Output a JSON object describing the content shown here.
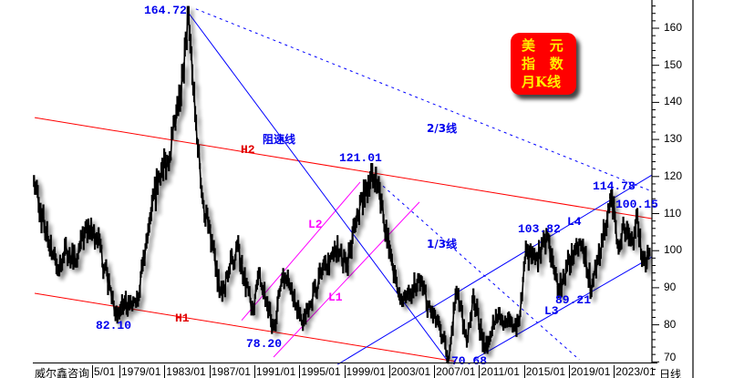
{
  "chart_data": {
    "type": "candlestick-monthly",
    "title_badge": [
      "美",
      "元",
      "指",
      "数",
      "月K线"
    ],
    "ylim": [
      68,
      166
    ],
    "yticks": [
      70,
      80,
      90,
      100,
      110,
      120,
      130,
      140,
      150,
      160
    ],
    "xticks": [
      "5/01",
      "1979/01",
      "1983/01",
      "1987/01",
      "1991/01",
      "1995/01",
      "1999/01",
      "2003/01",
      "2007/01",
      "2011/01",
      "2015/01",
      "2019/01",
      "2023/01"
    ],
    "xlim_years": [
      1971.4,
      2026.4
    ],
    "grid": false,
    "price_anchors": [
      [
        1971.4,
        120
      ],
      [
        1972.0,
        110
      ],
      [
        1973.5,
        95
      ],
      [
        1974.3,
        100
      ],
      [
        1975.2,
        97
      ],
      [
        1976.0,
        106
      ],
      [
        1977.0,
        104
      ],
      [
        1978.8,
        82.1
      ],
      [
        1979.5,
        86
      ],
      [
        1980.5,
        85
      ],
      [
        1981.6,
        106
      ],
      [
        1982.5,
        120
      ],
      [
        1983.5,
        126
      ],
      [
        1984.5,
        142
      ],
      [
        1985.15,
        164.72
      ],
      [
        1985.8,
        135
      ],
      [
        1986.5,
        112
      ],
      [
        1987.5,
        98
      ],
      [
        1988.0,
        88
      ],
      [
        1989.5,
        101
      ],
      [
        1990.8,
        84
      ],
      [
        1991.5,
        94
      ],
      [
        1992.7,
        78.2
      ],
      [
        1993.5,
        94
      ],
      [
        1994.3,
        90
      ],
      [
        1995.3,
        80
      ],
      [
        1996.0,
        86
      ],
      [
        1997.3,
        97
      ],
      [
        1998.6,
        100
      ],
      [
        1999.2,
        96
      ],
      [
        2000.2,
        110
      ],
      [
        2001.5,
        121.01
      ],
      [
        2002.3,
        113
      ],
      [
        2003.0,
        100
      ],
      [
        2004.0,
        86
      ],
      [
        2005.8,
        92
      ],
      [
        2006.5,
        85
      ],
      [
        2007.5,
        79
      ],
      [
        2008.3,
        70.68
      ],
      [
        2008.9,
        88
      ],
      [
        2009.3,
        86
      ],
      [
        2009.9,
        75
      ],
      [
        2010.5,
        88
      ],
      [
        2011.5,
        73
      ],
      [
        2012.5,
        83
      ],
      [
        2013.5,
        80
      ],
      [
        2014.5,
        80
      ],
      [
        2015.2,
        100
      ],
      [
        2016.0,
        97
      ],
      [
        2017.0,
        103.82
      ],
      [
        2018.1,
        89
      ],
      [
        2019.0,
        97
      ],
      [
        2020.2,
        102
      ],
      [
        2021.0,
        89.21
      ],
      [
        2022.8,
        114.78
      ],
      [
        2023.4,
        101
      ],
      [
        2023.9,
        106
      ],
      [
        2024.7,
        101
      ],
      [
        2025.0,
        110.15
      ],
      [
        2025.5,
        97
      ],
      [
        2026.2,
        99
      ]
    ],
    "price_labels": [
      "164.72",
      "82.10",
      "78.20",
      "121.01",
      "103.82",
      "114.78",
      "100.15",
      "89.21",
      "70.68"
    ],
    "trendlines": [
      {
        "name": "H2",
        "color": "#ff0000",
        "style": "solid",
        "points": [
          [
            1971.46,
            135.9
          ],
          [
            2026.36,
            108.65
          ]
        ]
      },
      {
        "name": "H1",
        "color": "#ff0000",
        "style": "solid",
        "points": [
          [
            1971.46,
            88.5
          ],
          [
            2008.93,
            70.1
          ]
        ]
      },
      {
        "name": "L2",
        "color": "#ff00ff",
        "style": "solid",
        "points": [
          [
            1989.87,
            81.2
          ],
          [
            2000.41,
            118.5
          ]
        ]
      },
      {
        "name": "L1",
        "color": "#ff00ff",
        "style": "solid",
        "points": [
          [
            1992.71,
            71.3
          ],
          [
            2005.68,
            113.1
          ]
        ]
      },
      {
        "name": "阻速线",
        "color": "#0000ff",
        "style": "solid",
        "points": [
          [
            1985.0,
            164.7
          ],
          [
            2008.1,
            70.6
          ]
        ]
      },
      {
        "name": "2/3线",
        "color": "#0000ff",
        "style": "dashed",
        "points": [
          [
            1985.8,
            165.2
          ],
          [
            2026.36,
            116.0
          ]
        ]
      },
      {
        "name": "1/3线",
        "color": "#0000ff",
        "style": "dashed",
        "points": [
          [
            2001.6,
            119.7
          ],
          [
            2019.9,
            70.6
          ]
        ]
      },
      {
        "name": "L4",
        "color": "#0000ff",
        "style": "solid",
        "points": [
          [
            1998.4,
            69.3
          ],
          [
            2026.36,
            120.4
          ]
        ]
      },
      {
        "name": "L3",
        "color": "#0000ff",
        "style": "solid",
        "points": [
          [
            2010.5,
            70.6
          ],
          [
            2026.36,
            98.3
          ]
        ]
      }
    ],
    "colors": {
      "price": "#000000",
      "support_resistance": "#ff0000",
      "channel": "#ff00ff",
      "trend": "#0000ff",
      "badge_bg": "#ff0000",
      "badge_text": "#ffee00"
    }
  },
  "footer": {
    "brand": "威尔鑫咨询",
    "unit": "日线"
  }
}
